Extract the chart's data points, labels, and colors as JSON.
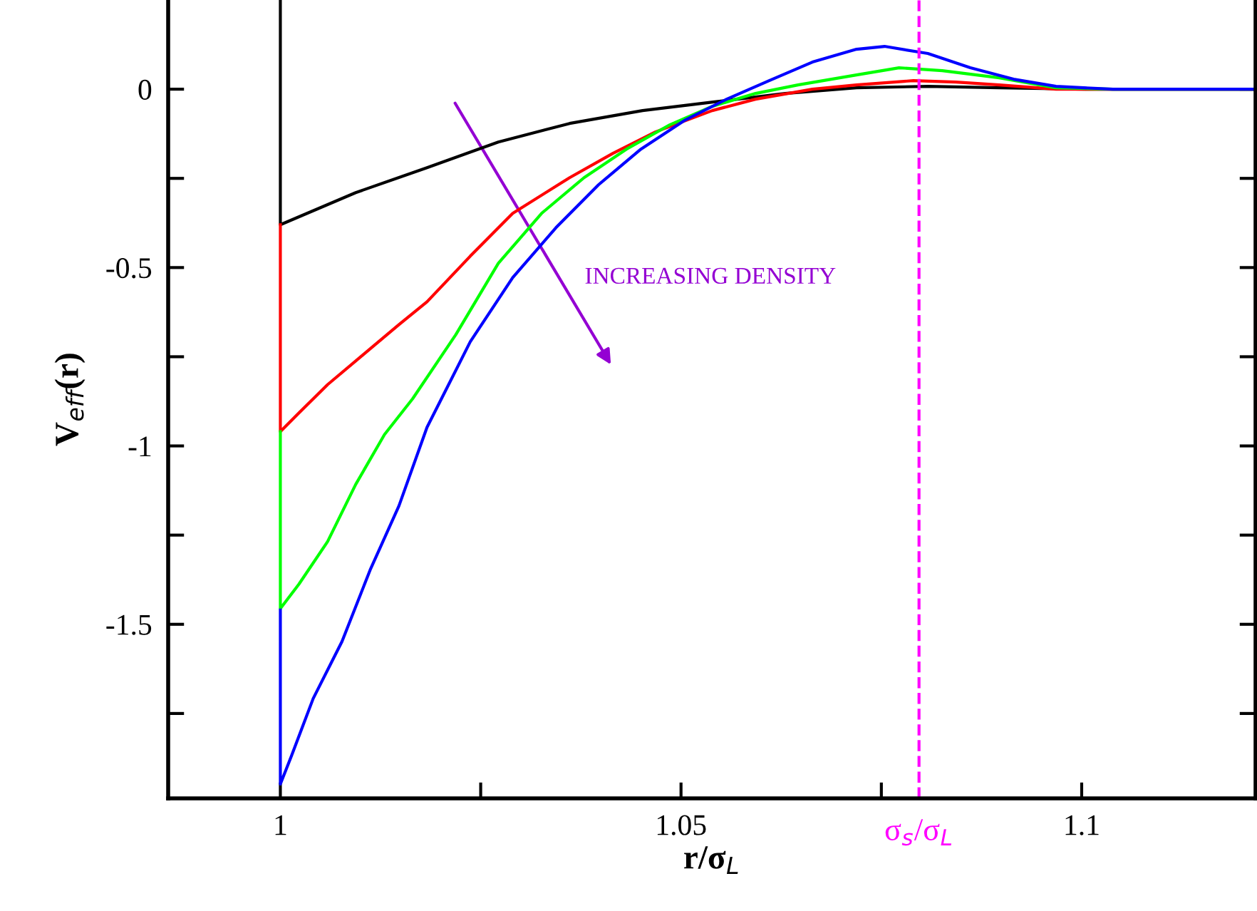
{
  "chart_data": {
    "type": "line",
    "xlabel": "r/σ$_{L}$",
    "ylabel": "V$_{eff}$(r)",
    "xlim": [
      0.986,
      1.1217
    ],
    "ylim": [
      -1.988,
      0.25
    ],
    "xticks": [
      1,
      {
        "value": 1.025,
        "label": null
      },
      1.05,
      {
        "value": 1.075,
        "label": null
      },
      1.1
    ],
    "yticks": [
      {
        "value": -1.75,
        "label": null
      },
      -1.5,
      {
        "value": -1.25,
        "label": null
      },
      -1,
      {
        "value": -0.75,
        "label": null
      },
      -0.5,
      {
        "value": -0.25,
        "label": null
      },
      0
    ],
    "grid": false,
    "line_style": "solid",
    "marker": "none",
    "ref_lines": [
      {
        "axis": "x",
        "value": 1.0797,
        "label": "σ$_{s}$/σ$_{L}$",
        "color": "#ff00ff",
        "line_style": "dashed"
      }
    ],
    "annotations": [
      "INCREASING DENSITY"
    ],
    "series": [
      {
        "color": "#000000",
        "x": [
          1,
          1,
          1.0094,
          1.0183,
          1.0272,
          1.0361,
          1.0452,
          1.054,
          1.063,
          1.0719,
          1.0808,
          1.0897,
          1.1005,
          1.1215
        ],
        "values": [
          0.25,
          -0.38,
          -0.29,
          -0.22,
          -0.148,
          -0.096,
          -0.06,
          -0.036,
          -0.012,
          0.004,
          0.008,
          0.004,
          0,
          0
        ]
      },
      {
        "color": "#ff0000",
        "x": [
          1,
          1,
          1.0023,
          1.0059,
          1.0112,
          1.0148,
          1.0183,
          1.0237,
          1.029,
          1.0361,
          1.0415,
          1.0468,
          1.0539,
          1.0593,
          1.0664,
          1.0719,
          1.079,
          1.0843,
          1.0897,
          1.0968,
          1.1215
        ],
        "values": [
          -0.38,
          -0.96,
          -0.908,
          -0.828,
          -0.728,
          -0.66,
          -0.596,
          -0.468,
          -0.348,
          -0.248,
          -0.18,
          -0.12,
          -0.06,
          -0.028,
          0,
          0.012,
          0.024,
          0.02,
          0.012,
          0,
          0
        ]
      },
      {
        "color": "#00ff00",
        "x": [
          1,
          1,
          1.0023,
          1.0059,
          1.0094,
          1.013,
          1.0165,
          1.0219,
          1.0272,
          1.0326,
          1.0379,
          1.0432,
          1.0486,
          1.0539,
          1.0593,
          1.0646,
          1.0719,
          1.0772,
          1.0826,
          1.0897,
          1.0968,
          1.1039,
          1.1215
        ],
        "values": [
          -0.96,
          -1.456,
          -1.388,
          -1.268,
          -1.108,
          -0.968,
          -0.868,
          -0.688,
          -0.488,
          -0.348,
          -0.248,
          -0.168,
          -0.1,
          -0.048,
          -0.012,
          0.012,
          0.04,
          0.06,
          0.052,
          0.032,
          0.004,
          0,
          0
        ]
      },
      {
        "color": "#0000ff",
        "x": [
          1,
          1,
          1.0014,
          1.0041,
          1.0077,
          1.0112,
          1.0148,
          1.0183,
          1.0237,
          1.029,
          1.0344,
          1.0397,
          1.045,
          1.0504,
          1.0557,
          1.061,
          1.0664,
          1.0719,
          1.0754,
          1.0808,
          1.0861,
          1.0915,
          1.0968,
          1.1039,
          1.1215
        ],
        "values": [
          -1.46,
          -1.948,
          -1.868,
          -1.708,
          -1.548,
          -1.348,
          -1.168,
          -0.948,
          -0.708,
          -0.528,
          -0.388,
          -0.268,
          -0.168,
          -0.088,
          -0.028,
          0.024,
          0.076,
          0.112,
          0.12,
          0.1,
          0.06,
          0.028,
          0.008,
          0,
          0
        ]
      }
    ]
  }
}
